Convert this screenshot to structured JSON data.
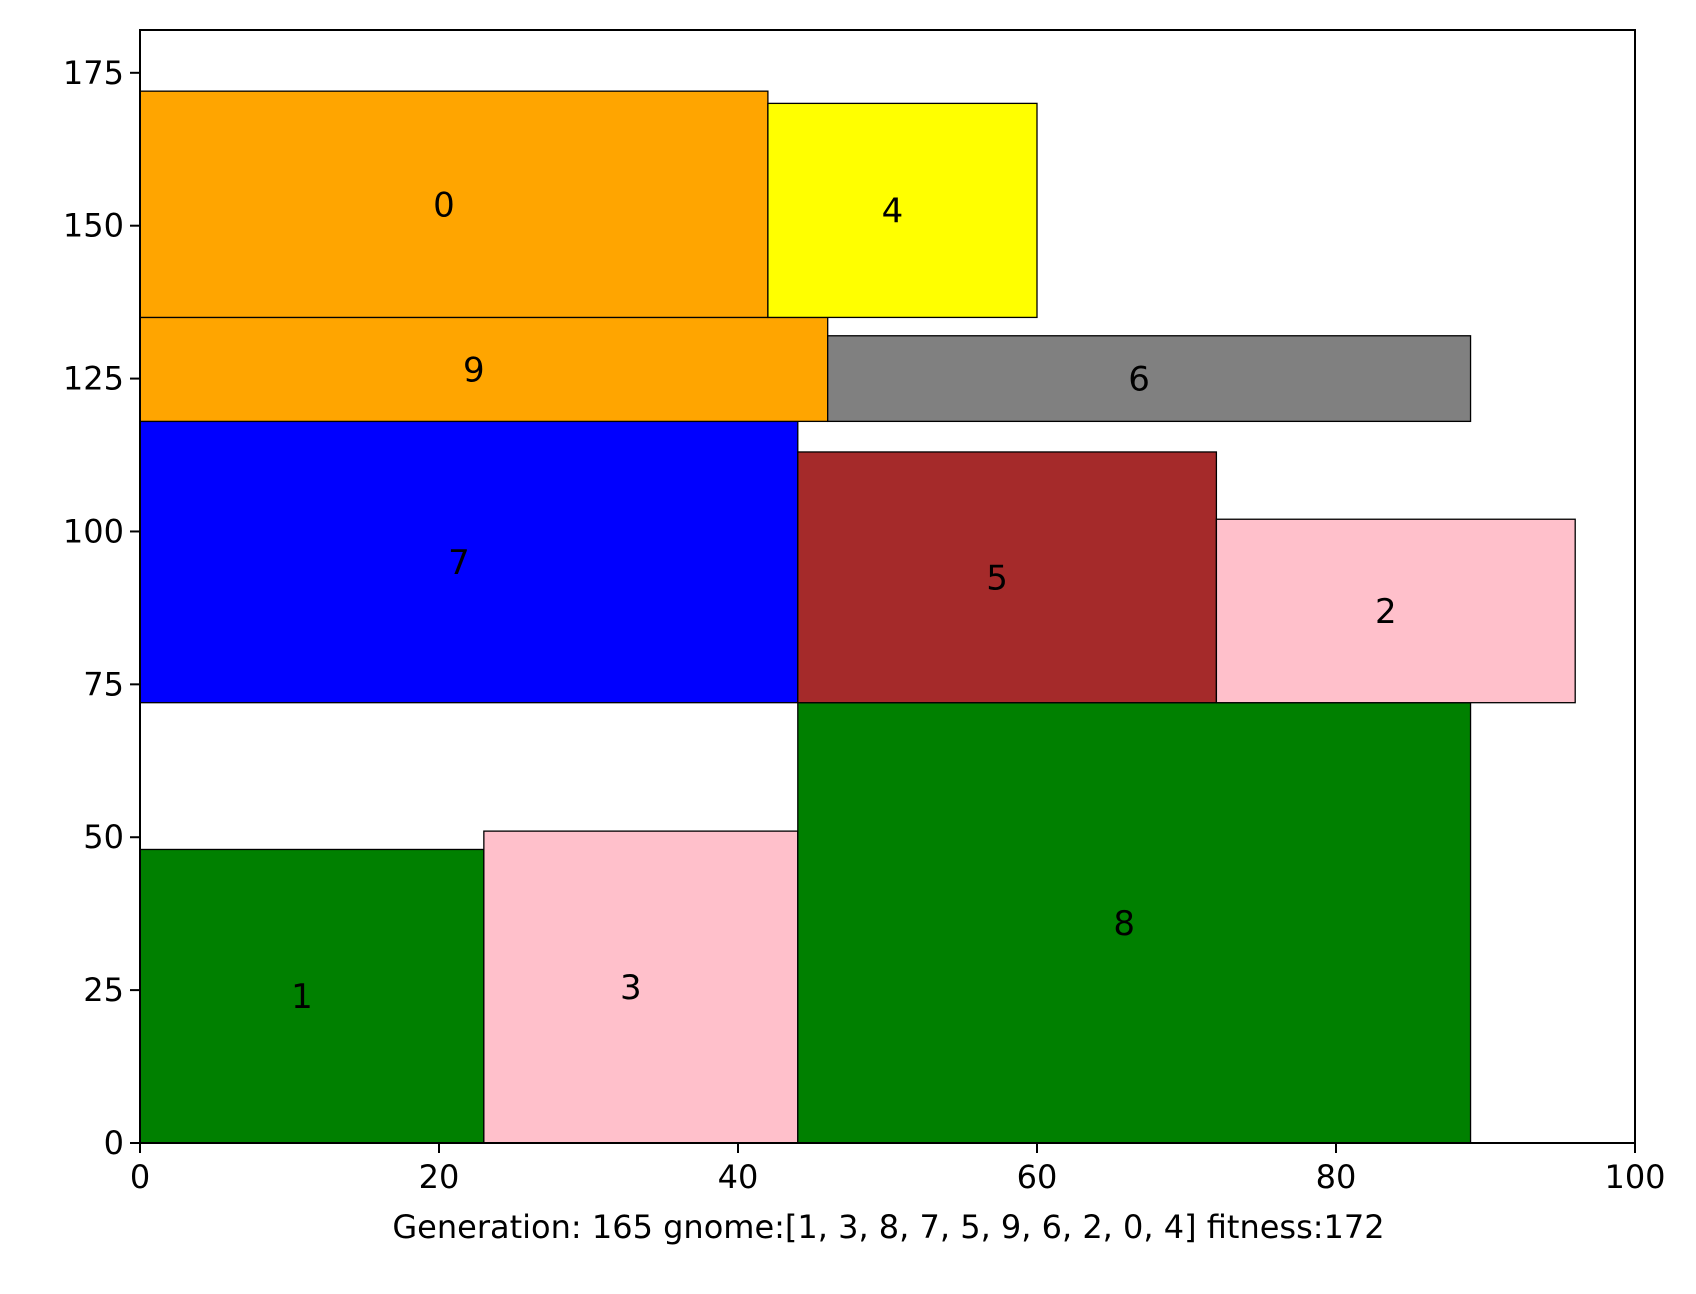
{
  "chart_data": {
    "type": "rectangle-packing",
    "xlabel": "Generation: 165 gnome:[1, 3, 8, 7, 5, 9, 6, 2, 0, 4] fitness:172",
    "xlim": [
      0,
      100
    ],
    "ylim": [
      0,
      182
    ],
    "xticks": [
      "0",
      "20",
      "40",
      "60",
      "80",
      "100"
    ],
    "yticks": [
      "0",
      "25",
      "50",
      "75",
      "100",
      "125",
      "150",
      "175"
    ],
    "rectangles": [
      {
        "label": "1",
        "x": 0,
        "y": 0,
        "w": 23,
        "h": 48,
        "color": "#008000"
      },
      {
        "label": "3",
        "x": 23,
        "y": 0,
        "w": 21,
        "h": 51,
        "color": "#ffc0cb"
      },
      {
        "label": "8",
        "x": 44,
        "y": 0,
        "w": 45,
        "h": 72,
        "color": "#008000"
      },
      {
        "label": "7",
        "x": 0,
        "y": 72,
        "w": 44,
        "h": 46,
        "color": "#0000ff"
      },
      {
        "label": "5",
        "x": 44,
        "y": 72,
        "w": 28,
        "h": 41,
        "color": "#a52a2a"
      },
      {
        "label": "9",
        "x": 0,
        "y": 118,
        "w": 46,
        "h": 17,
        "color": "#ffa500"
      },
      {
        "label": "6",
        "x": 46,
        "y": 118,
        "w": 43,
        "h": 14,
        "color": "#808080"
      },
      {
        "label": "2",
        "x": 72,
        "y": 72,
        "w": 24,
        "h": 30,
        "color": "#ffc0cb"
      },
      {
        "label": "0",
        "x": 0,
        "y": 135,
        "w": 42,
        "h": 37,
        "color": "#ffa500"
      },
      {
        "label": "4",
        "x": 42,
        "y": 135,
        "w": 18,
        "h": 35,
        "color": "#ffff00"
      }
    ]
  }
}
